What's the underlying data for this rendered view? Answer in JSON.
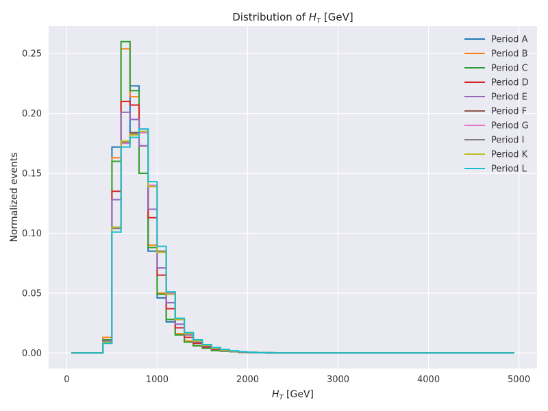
{
  "chart_data": {
    "type": "line",
    "drawstyle": "steps",
    "title_prefix": "Distribution of ",
    "title_var": "H",
    "title_sub": "T",
    "title_unit": " [GeV]",
    "xlabel_var": "H",
    "xlabel_sub": "T",
    "xlabel_unit": " [GeV]",
    "ylabel": "Normalized events",
    "xlim": [
      -200,
      5200
    ],
    "ylim": [
      -0.013,
      0.273
    ],
    "xticks": [
      0,
      1000,
      2000,
      3000,
      4000,
      5000
    ],
    "yticks": [
      0.0,
      0.05,
      0.1,
      0.15,
      0.2,
      0.25
    ],
    "ytick_labels": [
      "0.00",
      "0.05",
      "0.10",
      "0.15",
      "0.20",
      "0.25"
    ],
    "grid": true,
    "legend_position": "top-right",
    "colors": {
      "background": "#eaeaf2",
      "grid": "#ffffff"
    },
    "bin_edges": [
      50,
      100,
      200,
      300,
      400,
      500,
      600,
      700,
      800,
      900,
      1000,
      1100,
      1200,
      1300,
      1400,
      1500,
      1600,
      1700,
      1800,
      1900,
      2000,
      2100,
      2200,
      2300,
      2400,
      4950
    ],
    "series": [
      {
        "name": "Period A",
        "color": "#1f77b4",
        "values": [
          0,
          0,
          0,
          0,
          0.009,
          0.172,
          0.176,
          0.223,
          0.187,
          0.085,
          0.046,
          0.026,
          0.015,
          0.009,
          0.006,
          0.004,
          0.0025,
          0.0015,
          0.001,
          0.0005,
          0.0003,
          0.0002,
          0,
          0,
          0
        ]
      },
      {
        "name": "Period B",
        "color": "#ff7f0e",
        "values": [
          0,
          0,
          0,
          0,
          0.013,
          0.163,
          0.254,
          0.214,
          0.15,
          0.09,
          0.05,
          0.028,
          0.016,
          0.01,
          0.006,
          0.004,
          0.002,
          0.0015,
          0.001,
          0.0005,
          0.0003,
          0.0002,
          0,
          0,
          0
        ]
      },
      {
        "name": "Period C",
        "color": "#2ca02c",
        "values": [
          0,
          0,
          0,
          0,
          0.011,
          0.16,
          0.26,
          0.219,
          0.15,
          0.088,
          0.049,
          0.028,
          0.015,
          0.009,
          0.006,
          0.004,
          0.002,
          0.0015,
          0.001,
          0.0005,
          0.0003,
          0.0002,
          0,
          0,
          0
        ]
      },
      {
        "name": "Period D",
        "color": "#d62728",
        "values": [
          0,
          0,
          0,
          0,
          0.01,
          0.135,
          0.21,
          0.207,
          0.173,
          0.113,
          0.065,
          0.037,
          0.021,
          0.013,
          0.008,
          0.005,
          0.003,
          0.002,
          0.0012,
          0.0007,
          0.0004,
          0.0002,
          0,
          0,
          0
        ]
      },
      {
        "name": "Period E",
        "color": "#9467bd",
        "values": [
          0,
          0,
          0,
          0,
          0.01,
          0.128,
          0.201,
          0.195,
          0.173,
          0.12,
          0.071,
          0.042,
          0.024,
          0.015,
          0.009,
          0.006,
          0.0035,
          0.002,
          0.0013,
          0.0008,
          0.0005,
          0.0003,
          0,
          0,
          0
        ]
      },
      {
        "name": "Period F",
        "color": "#8c564b",
        "values": [
          0,
          0,
          0,
          0,
          0.009,
          0.105,
          0.176,
          0.184,
          0.184,
          0.14,
          0.085,
          0.05,
          0.028,
          0.016,
          0.01,
          0.0065,
          0.004,
          0.0025,
          0.0015,
          0.001,
          0.0005,
          0.0003,
          0.0002,
          0,
          0
        ]
      },
      {
        "name": "Period G",
        "color": "#e377c2",
        "values": [
          0,
          0,
          0,
          0,
          0.009,
          0.104,
          0.175,
          0.183,
          0.184,
          0.14,
          0.085,
          0.05,
          0.028,
          0.016,
          0.01,
          0.0065,
          0.004,
          0.0025,
          0.0015,
          0.001,
          0.0005,
          0.0003,
          0.0002,
          0,
          0
        ]
      },
      {
        "name": "Period I",
        "color": "#7f7f7f",
        "values": [
          0,
          0,
          0,
          0,
          0.009,
          0.104,
          0.176,
          0.183,
          0.185,
          0.139,
          0.085,
          0.049,
          0.028,
          0.016,
          0.01,
          0.0065,
          0.004,
          0.0025,
          0.0015,
          0.001,
          0.0005,
          0.0003,
          0.0002,
          0,
          0
        ]
      },
      {
        "name": "Period K",
        "color": "#bcbd22",
        "values": [
          0,
          0,
          0,
          0,
          0.009,
          0.105,
          0.177,
          0.182,
          0.185,
          0.139,
          0.084,
          0.049,
          0.028,
          0.016,
          0.01,
          0.0065,
          0.004,
          0.0025,
          0.0015,
          0.001,
          0.0005,
          0.0003,
          0.0002,
          0,
          0
        ]
      },
      {
        "name": "Period L",
        "color": "#17becf",
        "values": [
          0,
          0,
          0,
          0,
          0.008,
          0.101,
          0.172,
          0.18,
          0.187,
          0.143,
          0.089,
          0.051,
          0.029,
          0.017,
          0.011,
          0.007,
          0.0045,
          0.003,
          0.0018,
          0.0011,
          0.0006,
          0.0003,
          0.0002,
          0,
          0
        ]
      }
    ]
  }
}
